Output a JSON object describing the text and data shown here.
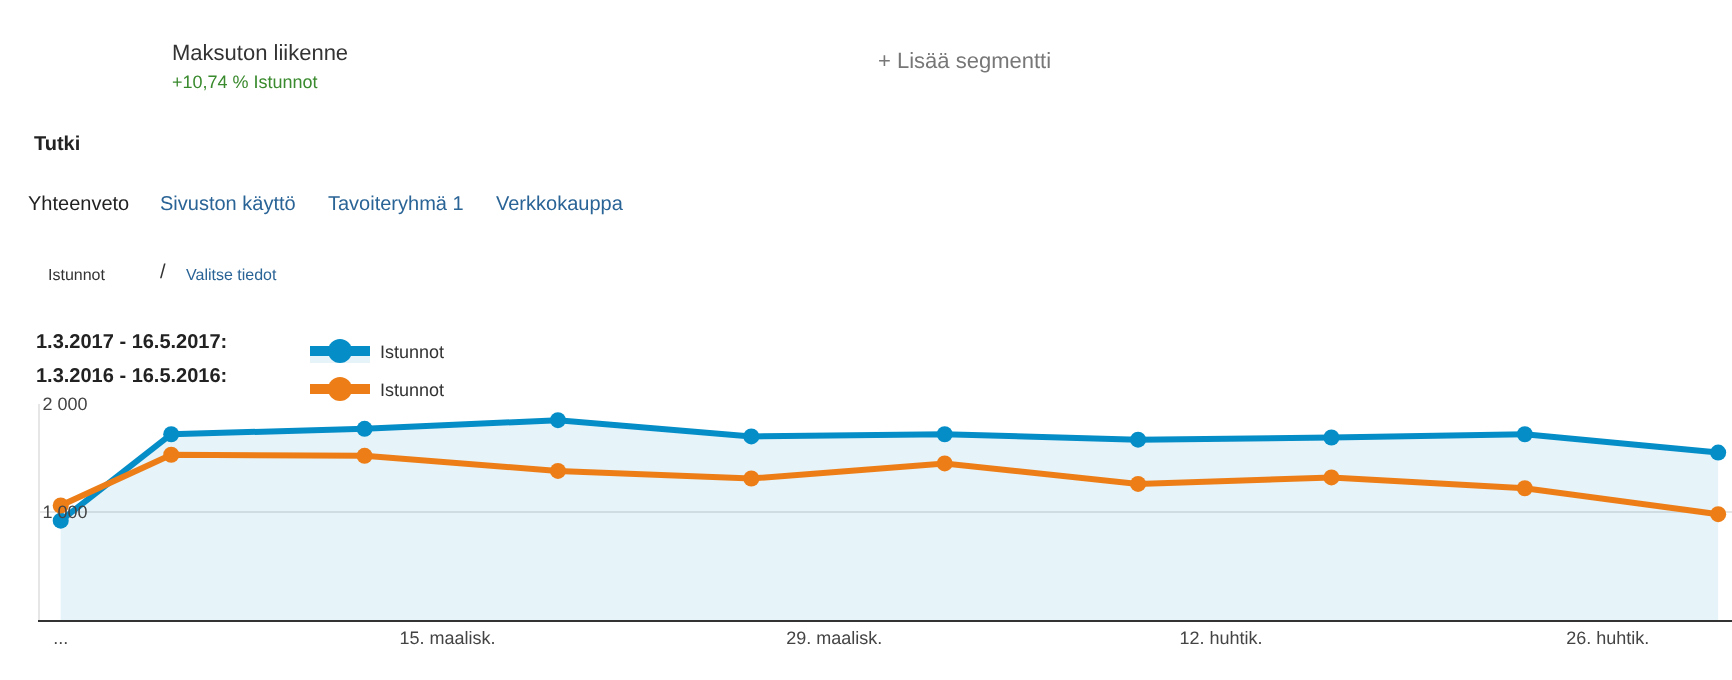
{
  "chart_data": {
    "type": "line",
    "x": [
      "2017-03-01",
      "2017-03-05",
      "2017-03-12",
      "2017-03-19",
      "2017-03-26",
      "2017-04-02",
      "2017-04-09",
      "2017-04-16",
      "2017-04-23",
      "2017-04-30"
    ],
    "series": [
      {
        "name": "Istunnot",
        "type": "area",
        "color": "#058dc7",
        "values": [
          920,
          1720,
          1770,
          1850,
          1700,
          1720,
          1670,
          1690,
          1720,
          1550
        ]
      },
      {
        "name": "Istunnot",
        "color": "#ed7e17",
        "values": [
          1060,
          1530,
          1520,
          1380,
          1310,
          1450,
          1260,
          1320,
          1220,
          980
        ]
      }
    ],
    "xlim": [
      "2017-02-28T06:00",
      "2017-04-30T12:00"
    ],
    "xticks": [
      {
        "value": "2017-03-01",
        "label": "..."
      },
      {
        "value": "2017-03-15",
        "label": "15. maalisk."
      },
      {
        "value": "2017-03-29",
        "label": "29. maalisk."
      },
      {
        "value": "2017-04-12",
        "label": "12. huhtik."
      },
      {
        "value": "2017-04-26",
        "label": "26. huhtik."
      }
    ],
    "ylim": [
      0,
      2000
    ],
    "yticks": [
      {
        "value": 1000,
        "label": "1 000"
      },
      {
        "value": 2000,
        "label": "2 000"
      }
    ],
    "grid": "y",
    "marker": "circle",
    "line_style": "solid",
    "legend": "top left",
    "annotations": [
      "Maksuton liikenne",
      "+10,74 % Istunnot",
      "+ Lisää segmentti",
      "Tutki",
      "Yhteenveto",
      "Sivuston käyttö",
      "Tavoiteryhmä 1",
      "Verkkokauppa",
      "Istunnot",
      "/",
      "Valitse tiedot",
      "1.3.2017 - 16.5.2017:",
      "1.3.2016 - 16.5.2016:"
    ]
  }
}
